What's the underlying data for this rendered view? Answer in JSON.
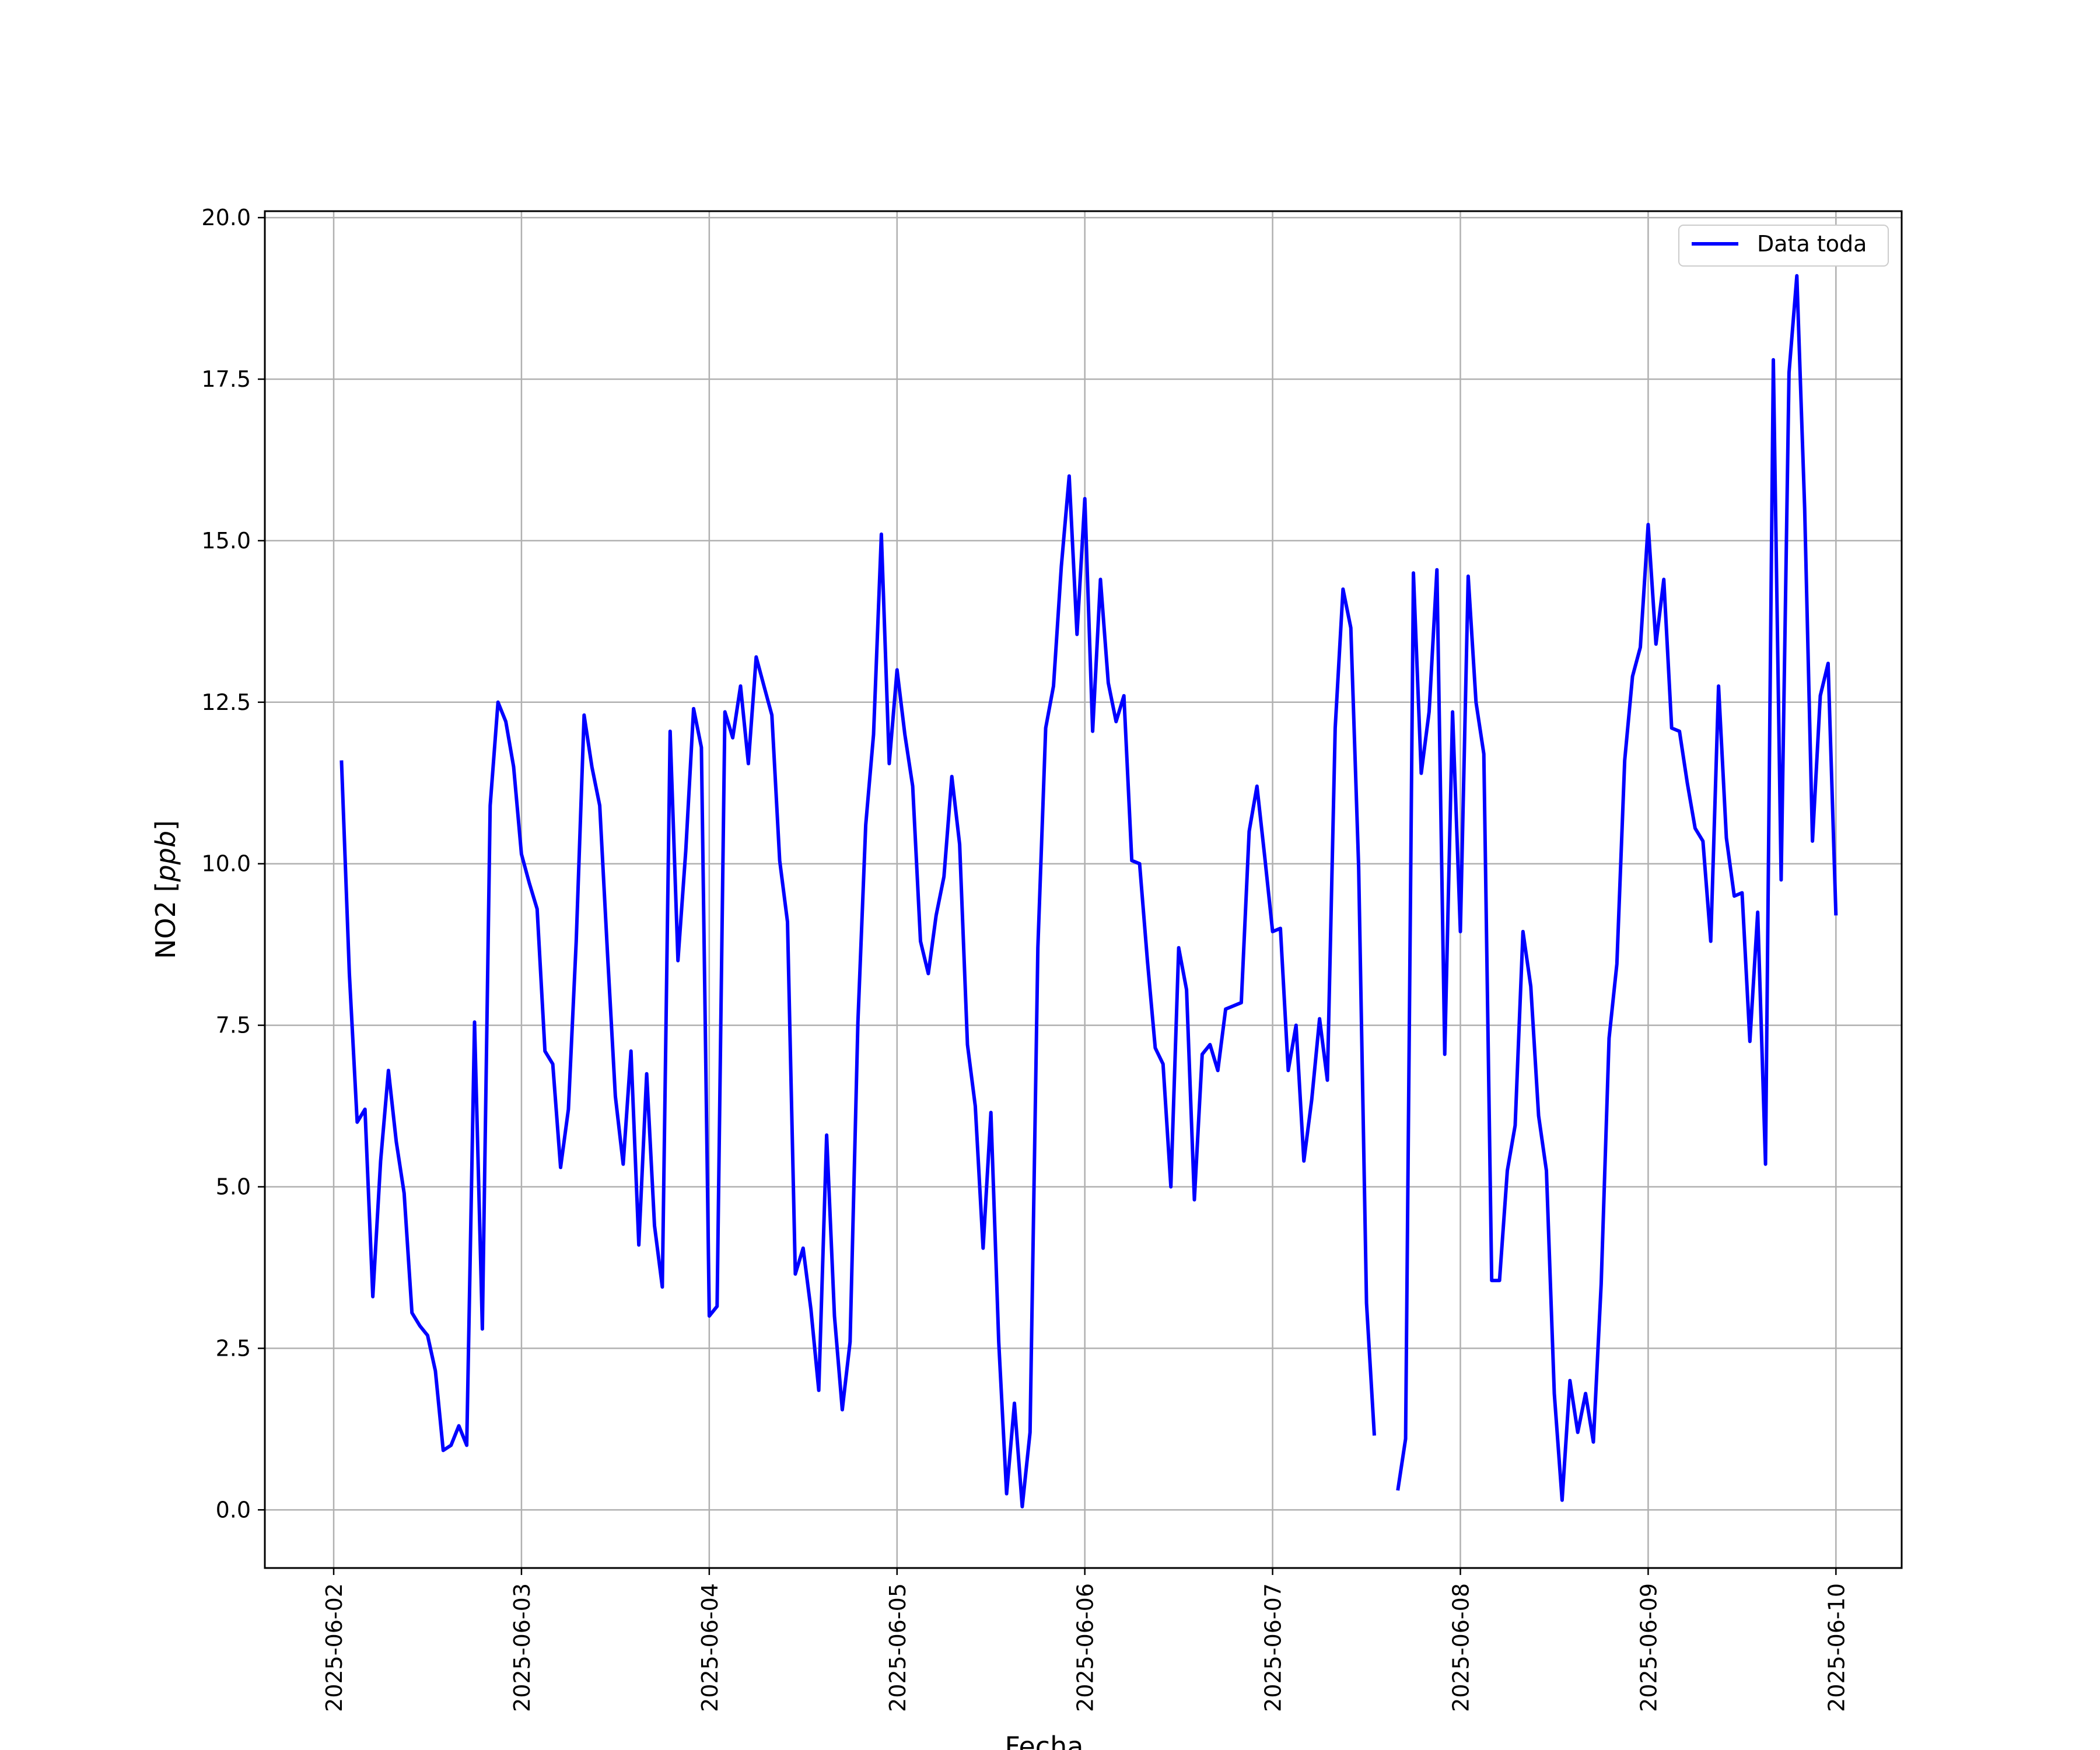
{
  "chart_data": {
    "type": "line",
    "title": "",
    "xlabel": "Fecha",
    "ylabel": "NO2 [ppb]",
    "ylabel_main": "NO2 [",
    "ylabel_unit": "ppb",
    "ylabel_close": "]",
    "ylim": [
      -0.9,
      20.1
    ],
    "xlim": [
      "2025-06-01 15:12",
      "2025-06-10 08:24"
    ],
    "grid": true,
    "legend": "top-right",
    "x_ticks": [
      "2025-06-02",
      "2025-06-03",
      "2025-06-04",
      "2025-06-05",
      "2025-06-06",
      "2025-06-07",
      "2025-06-08",
      "2025-06-09",
      "2025-06-10"
    ],
    "y_ticks": [
      "0.0",
      "2.5",
      "5.0",
      "7.5",
      "10.0",
      "12.5",
      "15.0",
      "17.5",
      "20.0"
    ],
    "series": [
      {
        "name": "Data toda",
        "color": "#0000ff",
        "points": [
          [
            "2025-06-02 01:00",
            11.6
          ],
          [
            "2025-06-02 02:00",
            8.3
          ],
          [
            "2025-06-02 03:00",
            6.0
          ],
          [
            "2025-06-02 04:00",
            6.2
          ],
          [
            "2025-06-02 05:00",
            3.3
          ],
          [
            "2025-06-02 06:00",
            5.4
          ],
          [
            "2025-06-02 07:00",
            6.8
          ],
          [
            "2025-06-02 08:00",
            5.7
          ],
          [
            "2025-06-02 09:00",
            4.9
          ],
          [
            "2025-06-02 10:00",
            3.05
          ],
          [
            "2025-06-02 11:00",
            2.85
          ],
          [
            "2025-06-02 12:00",
            2.7
          ],
          [
            "2025-06-02 13:00",
            2.15
          ],
          [
            "2025-06-02 14:00",
            0.92
          ],
          [
            "2025-06-02 15:00",
            1.0
          ],
          [
            "2025-06-02 16:00",
            1.3
          ],
          [
            "2025-06-02 17:00",
            1.0
          ],
          [
            "2025-06-02 18:00",
            7.55
          ],
          [
            "2025-06-02 19:00",
            2.8
          ],
          [
            "2025-06-02 20:00",
            10.9
          ],
          [
            "2025-06-02 21:00",
            12.5
          ],
          [
            "2025-06-02 22:00",
            12.2
          ],
          [
            "2025-06-02 23:00",
            11.5
          ],
          [
            "2025-06-03 00:00",
            10.15
          ],
          [
            "2025-06-03 01:00",
            9.7
          ],
          [
            "2025-06-03 02:00",
            9.3
          ],
          [
            "2025-06-03 03:00",
            7.1
          ],
          [
            "2025-06-03 04:00",
            6.9
          ],
          [
            "2025-06-03 05:00",
            5.3
          ],
          [
            "2025-06-03 06:00",
            6.2
          ],
          [
            "2025-06-03 07:00",
            8.8
          ],
          [
            "2025-06-03 08:00",
            12.3
          ],
          [
            "2025-06-03 09:00",
            11.5
          ],
          [
            "2025-06-03 10:00",
            10.9
          ],
          [
            "2025-06-03 11:00",
            8.6
          ],
          [
            "2025-06-03 12:00",
            6.4
          ],
          [
            "2025-06-03 13:00",
            5.35
          ],
          [
            "2025-06-03 14:00",
            7.1
          ],
          [
            "2025-06-03 15:00",
            4.1
          ],
          [
            "2025-06-03 16:00",
            6.75
          ],
          [
            "2025-06-03 17:00",
            4.4
          ],
          [
            "2025-06-03 18:00",
            3.45
          ],
          [
            "2025-06-03 19:00",
            12.05
          ],
          [
            "2025-06-03 20:00",
            8.5
          ],
          [
            "2025-06-03 21:00",
            10.2
          ],
          [
            "2025-06-03 22:00",
            12.4
          ],
          [
            "2025-06-03 23:00",
            11.8
          ],
          [
            "2025-06-04 00:00",
            3.0
          ],
          [
            "2025-06-04 01:00",
            3.15
          ],
          [
            "2025-06-04 02:00",
            12.35
          ],
          [
            "2025-06-04 03:00",
            11.95
          ],
          [
            "2025-06-04 04:00",
            12.75
          ],
          [
            "2025-06-04 05:00",
            11.55
          ],
          [
            "2025-06-04 06:00",
            13.2
          ],
          [
            "2025-06-04 07:00",
            12.75
          ],
          [
            "2025-06-04 08:00",
            12.3
          ],
          [
            "2025-06-04 09:00",
            10.05
          ],
          [
            "2025-06-04 10:00",
            9.1
          ],
          [
            "2025-06-04 11:00",
            3.65
          ],
          [
            "2025-06-04 12:00",
            4.05
          ],
          [
            "2025-06-04 13:00",
            3.1
          ],
          [
            "2025-06-04 14:00",
            1.85
          ],
          [
            "2025-06-04 15:00",
            5.8
          ],
          [
            "2025-06-04 16:00",
            3.0
          ],
          [
            "2025-06-04 17:00",
            1.55
          ],
          [
            "2025-06-04 18:00",
            2.6
          ],
          [
            "2025-06-04 19:00",
            7.55
          ],
          [
            "2025-06-04 20:00",
            10.6
          ],
          [
            "2025-06-04 21:00",
            12.0
          ],
          [
            "2025-06-04 22:00",
            15.1
          ],
          [
            "2025-06-04 23:00",
            11.55
          ],
          [
            "2025-06-05 00:00",
            13.0
          ],
          [
            "2025-06-05 01:00",
            12.0
          ],
          [
            "2025-06-05 02:00",
            11.2
          ],
          [
            "2025-06-05 03:00",
            8.8
          ],
          [
            "2025-06-05 04:00",
            8.3
          ],
          [
            "2025-06-05 05:00",
            9.2
          ],
          [
            "2025-06-05 06:00",
            9.8
          ],
          [
            "2025-06-05 07:00",
            11.35
          ],
          [
            "2025-06-05 08:00",
            10.3
          ],
          [
            "2025-06-05 09:00",
            7.2
          ],
          [
            "2025-06-05 10:00",
            6.25
          ],
          [
            "2025-06-05 11:00",
            4.05
          ],
          [
            "2025-06-05 12:00",
            6.15
          ],
          [
            "2025-06-05 13:00",
            2.6
          ],
          [
            "2025-06-05 14:00",
            0.25
          ],
          [
            "2025-06-05 15:00",
            1.65
          ],
          [
            "2025-06-05 16:00",
            0.05
          ],
          [
            "2025-06-05 17:00",
            1.2
          ],
          [
            "2025-06-05 18:00",
            8.7
          ],
          [
            "2025-06-05 19:00",
            12.1
          ],
          [
            "2025-06-05 20:00",
            12.75
          ],
          [
            "2025-06-05 21:00",
            14.6
          ],
          [
            "2025-06-05 22:00",
            16.0
          ],
          [
            "2025-06-05 23:00",
            13.55
          ],
          [
            "2025-06-06 00:00",
            15.65
          ],
          [
            "2025-06-06 01:00",
            12.05
          ],
          [
            "2025-06-06 02:00",
            14.4
          ],
          [
            "2025-06-06 03:00",
            12.8
          ],
          [
            "2025-06-06 04:00",
            12.2
          ],
          [
            "2025-06-06 05:00",
            12.6
          ],
          [
            "2025-06-06 06:00",
            10.05
          ],
          [
            "2025-06-06 07:00",
            10.0
          ],
          [
            "2025-06-06 08:00",
            8.5
          ],
          [
            "2025-06-06 09:00",
            7.15
          ],
          [
            "2025-06-06 10:00",
            6.9
          ],
          [
            "2025-06-06 11:00",
            5.0
          ],
          [
            "2025-06-06 12:00",
            8.7
          ],
          [
            "2025-06-06 13:00",
            8.05
          ],
          [
            "2025-06-06 14:00",
            4.8
          ],
          [
            "2025-06-06 15:00",
            7.05
          ],
          [
            "2025-06-06 16:00",
            7.2
          ],
          [
            "2025-06-06 17:00",
            6.8
          ],
          [
            "2025-06-06 18:00",
            7.75
          ],
          [
            "2025-06-06 19:00",
            7.8
          ],
          [
            "2025-06-06 20:00",
            7.85
          ],
          [
            "2025-06-06 21:00",
            10.5
          ],
          [
            "2025-06-06 22:00",
            11.2
          ],
          [
            "2025-06-06 23:00",
            10.1
          ],
          [
            "2025-06-07 00:00",
            8.95
          ],
          [
            "2025-06-07 01:00",
            9.0
          ],
          [
            "2025-06-07 02:00",
            6.8
          ],
          [
            "2025-06-07 03:00",
            7.5
          ],
          [
            "2025-06-07 04:00",
            5.4
          ],
          [
            "2025-06-07 05:00",
            6.35
          ],
          [
            "2025-06-07 06:00",
            7.6
          ],
          [
            "2025-06-07 07:00",
            6.65
          ],
          [
            "2025-06-07 08:00",
            12.1
          ],
          [
            "2025-06-07 09:00",
            14.25
          ],
          [
            "2025-06-07 10:00",
            13.65
          ],
          [
            "2025-06-07 11:00",
            9.95
          ],
          [
            "2025-06-07 12:00",
            3.2
          ],
          [
            "2025-06-07 13:00",
            1.15
          ],
          null,
          [
            "2025-06-07 16:00",
            0.3
          ],
          [
            "2025-06-07 17:00",
            1.1
          ],
          [
            "2025-06-07 18:00",
            14.5
          ],
          [
            "2025-06-07 19:00",
            11.4
          ],
          [
            "2025-06-07 20:00",
            12.35
          ],
          [
            "2025-06-07 21:00",
            14.55
          ],
          [
            "2025-06-07 22:00",
            7.05
          ],
          [
            "2025-06-07 23:00",
            12.35
          ],
          [
            "2025-06-08 00:00",
            8.95
          ],
          [
            "2025-06-08 01:00",
            14.45
          ],
          [
            "2025-06-08 02:00",
            12.5
          ],
          [
            "2025-06-08 03:00",
            11.7
          ],
          [
            "2025-06-08 04:00",
            3.55
          ],
          [
            "2025-06-08 05:00",
            3.55
          ],
          [
            "2025-06-08 06:00",
            5.25
          ],
          [
            "2025-06-08 07:00",
            5.95
          ],
          [
            "2025-06-08 08:00",
            8.95
          ],
          [
            "2025-06-08 09:00",
            8.1
          ],
          [
            "2025-06-08 10:00",
            6.1
          ],
          [
            "2025-06-08 11:00",
            5.25
          ],
          [
            "2025-06-08 12:00",
            1.8
          ],
          [
            "2025-06-08 13:00",
            0.15
          ],
          [
            "2025-06-08 14:00",
            2.0
          ],
          [
            "2025-06-08 15:00",
            1.2
          ],
          [
            "2025-06-08 16:00",
            1.8
          ],
          [
            "2025-06-08 17:00",
            1.05
          ],
          [
            "2025-06-08 18:00",
            3.5
          ],
          [
            "2025-06-08 19:00",
            7.3
          ],
          [
            "2025-06-08 20:00",
            8.45
          ],
          [
            "2025-06-08 21:00",
            11.6
          ],
          [
            "2025-06-08 22:00",
            12.9
          ],
          [
            "2025-06-08 23:00",
            13.35
          ],
          [
            "2025-06-09 00:00",
            15.25
          ],
          [
            "2025-06-09 01:00",
            13.4
          ],
          [
            "2025-06-09 02:00",
            14.4
          ],
          [
            "2025-06-09 03:00",
            12.1
          ],
          [
            "2025-06-09 04:00",
            12.05
          ],
          [
            "2025-06-09 05:00",
            11.25
          ],
          [
            "2025-06-09 06:00",
            10.55
          ],
          [
            "2025-06-09 07:00",
            10.35
          ],
          [
            "2025-06-09 08:00",
            8.8
          ],
          [
            "2025-06-09 09:00",
            12.75
          ],
          [
            "2025-06-09 10:00",
            10.4
          ],
          [
            "2025-06-09 11:00",
            9.5
          ],
          [
            "2025-06-09 12:00",
            9.55
          ],
          [
            "2025-06-09 13:00",
            7.25
          ],
          [
            "2025-06-09 14:00",
            9.25
          ],
          [
            "2025-06-09 15:00",
            5.35
          ],
          [
            "2025-06-09 16:00",
            17.8
          ],
          [
            "2025-06-09 17:00",
            9.75
          ],
          [
            "2025-06-09 18:00",
            17.6
          ],
          [
            "2025-06-09 19:00",
            19.1
          ],
          [
            "2025-06-09 20:00",
            15.5
          ],
          [
            "2025-06-09 21:00",
            10.35
          ],
          [
            "2025-06-09 22:00",
            12.6
          ],
          [
            "2025-06-09 23:00",
            13.1
          ],
          [
            "2025-06-10 00:00",
            9.2
          ]
        ]
      }
    ]
  }
}
